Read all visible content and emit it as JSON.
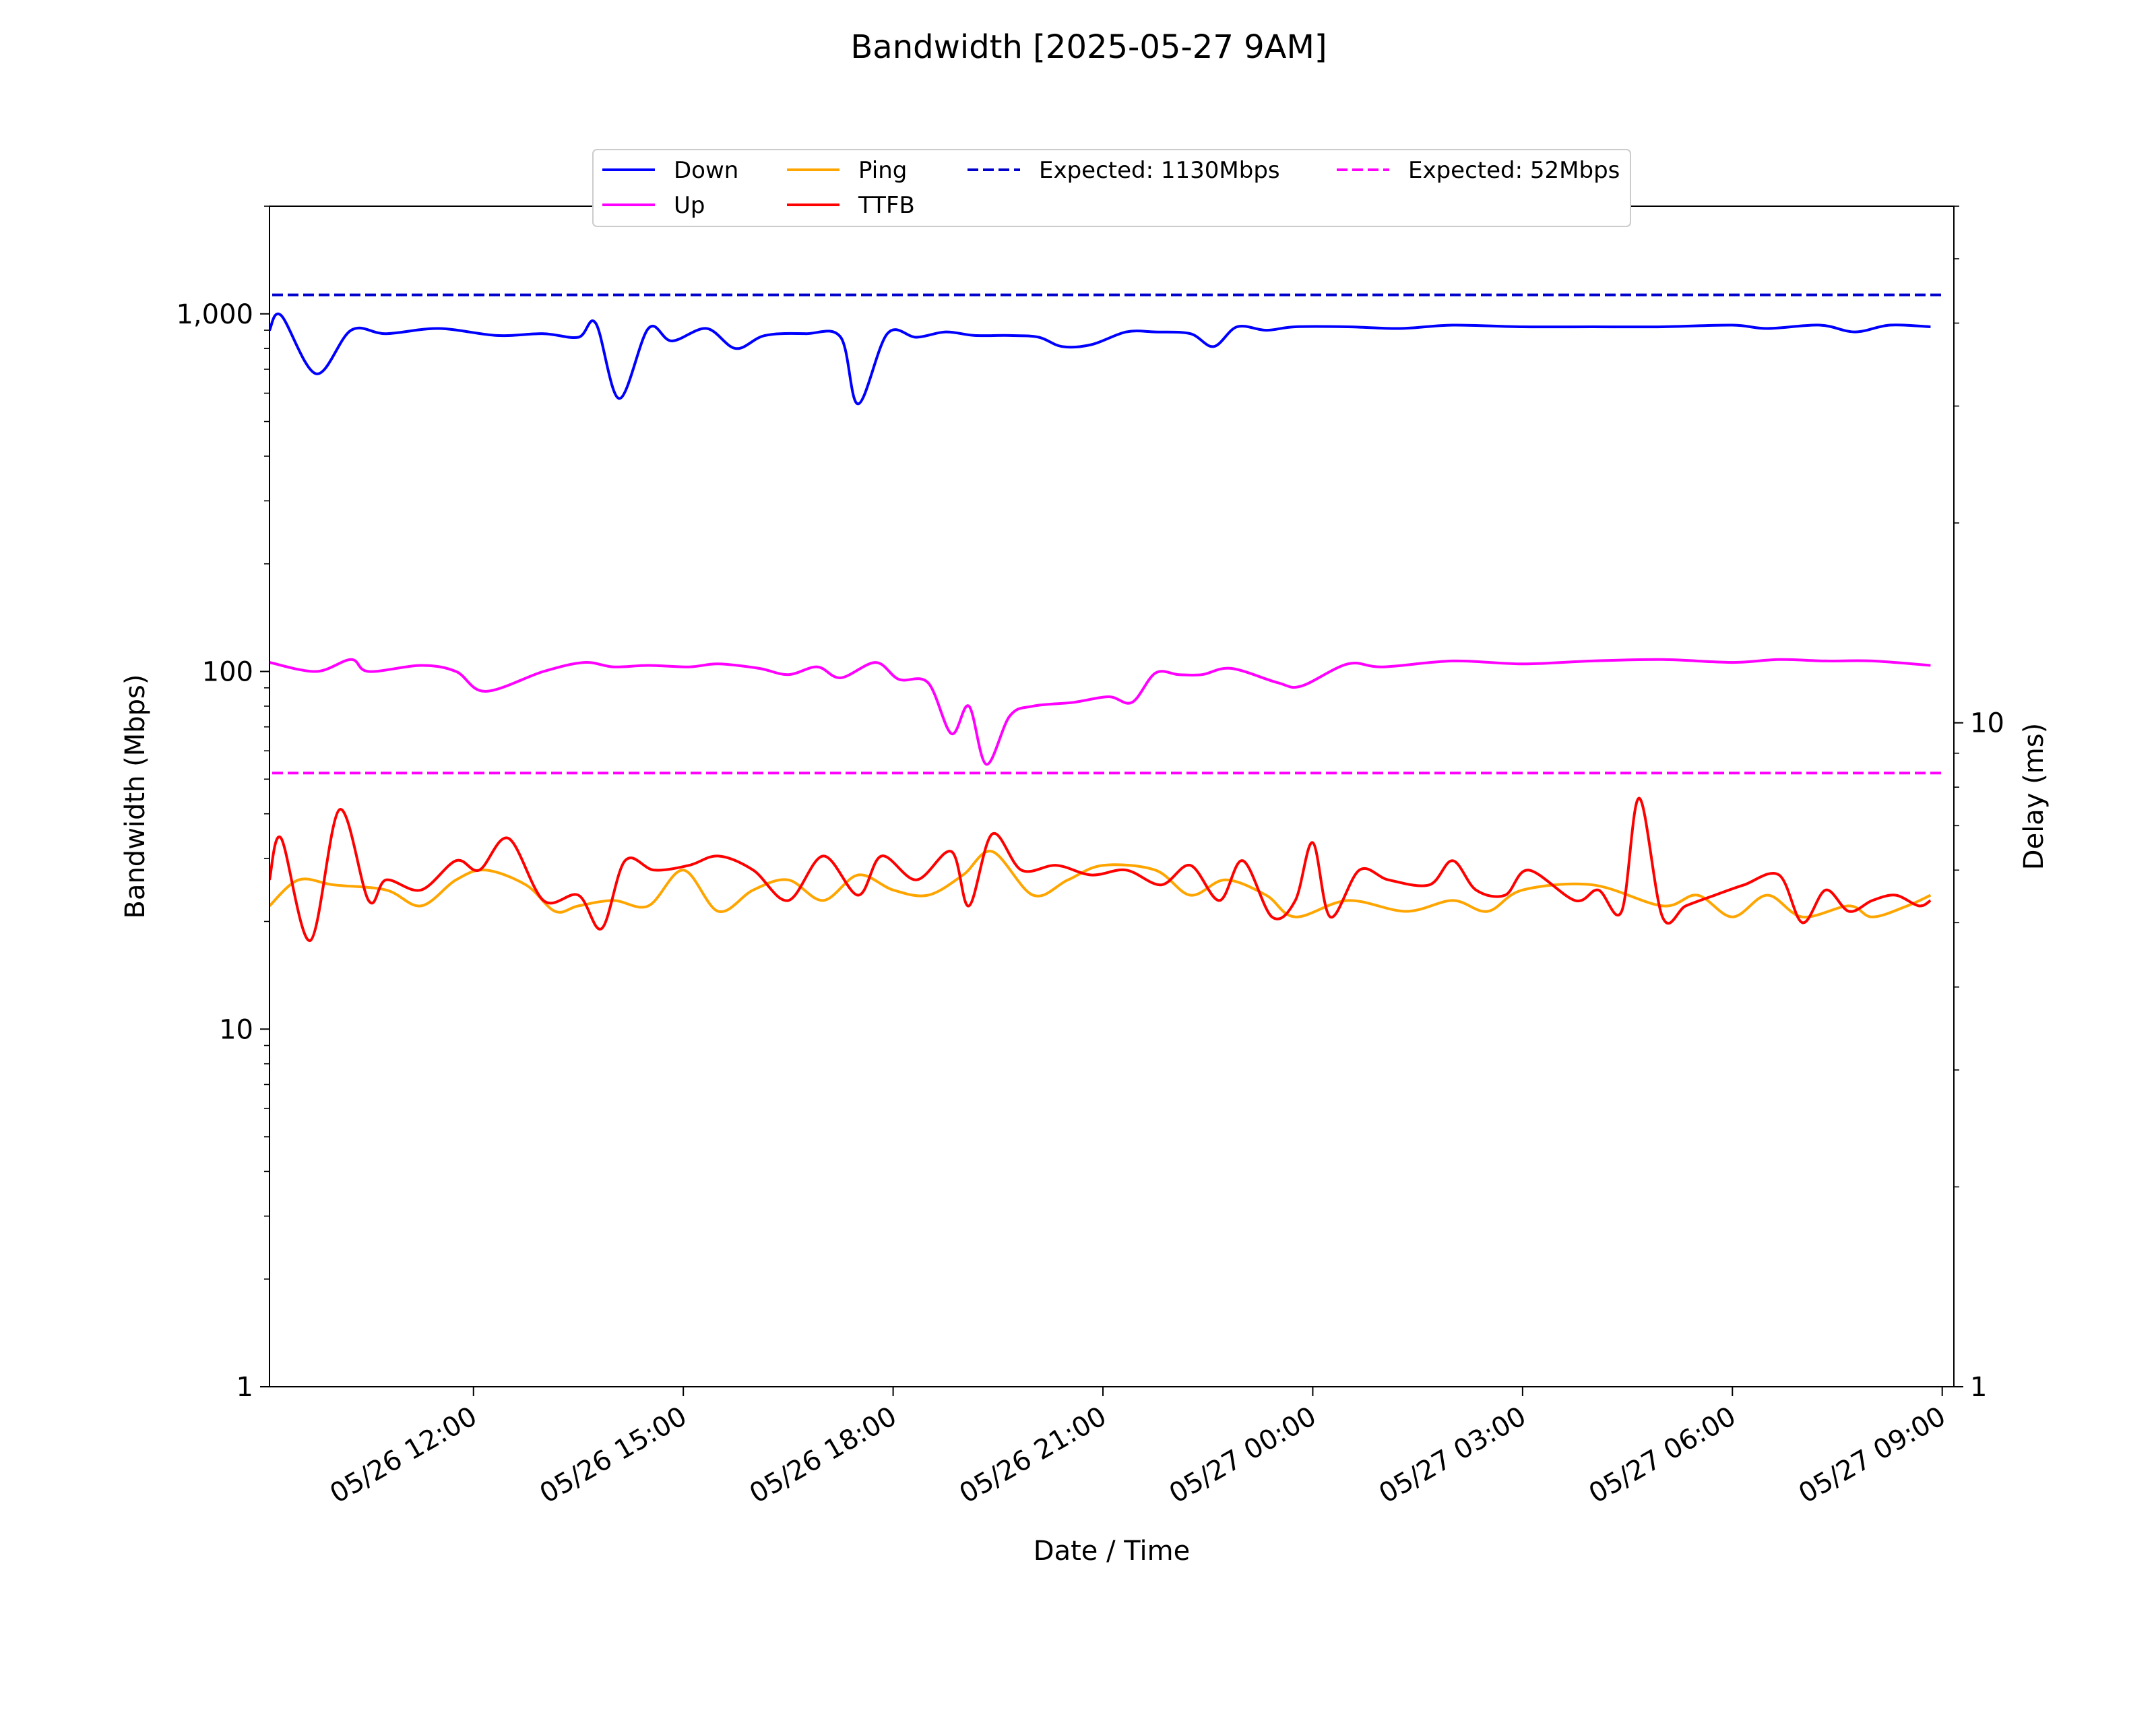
{
  "chart_data": {
    "type": "line",
    "title": "Bandwidth [2025-05-27 9AM]",
    "xlabel": "Date / Time",
    "ylabel_left": "Bandwidth (Mbps)",
    "ylabel_right": "Delay (ms)",
    "y_scale_left": "log",
    "y_scale_right": "log",
    "ylim_left": [
      1,
      2000
    ],
    "ylim_right": [
      1,
      60
    ],
    "xlim": [
      "2025-05-26 09:05",
      "2025-05-27 09:10"
    ],
    "grid": false,
    "legend_placement": "top-center",
    "x_tick_labels": [
      "05/26 12:00",
      "05/26 15:00",
      "05/26 18:00",
      "05/26 21:00",
      "05/27 00:00",
      "05/27 03:00",
      "05/27 06:00",
      "05/27 09:00"
    ],
    "y_tick_labels_left": [
      "1",
      "10",
      "100",
      "1,000"
    ],
    "y_tick_labels_right": [
      "1",
      "10"
    ],
    "expected_lines": [
      {
        "name": "Expected: 1130Mbps",
        "value": 1130,
        "axis": "left",
        "color": "#0000cc",
        "style": "dashed"
      },
      {
        "name": "Expected: 52Mbps",
        "value": 52,
        "axis": "left",
        "color": "#ff00ff",
        "style": "dashed"
      }
    ],
    "series": [
      {
        "name": "Down",
        "axis": "left",
        "color": "#0000ff",
        "x": [
          "2025-05-26 09:05",
          "2025-05-26 09:15",
          "2025-05-26 09:45",
          "2025-05-26 10:15",
          "2025-05-26 10:45",
          "2025-05-26 11:30",
          "2025-05-26 12:20",
          "2025-05-26 13:00",
          "2025-05-26 13:30",
          "2025-05-26 13:45",
          "2025-05-26 14:05",
          "2025-05-26 14:30",
          "2025-05-26 14:50",
          "2025-05-26 15:20",
          "2025-05-26 15:45",
          "2025-05-26 16:10",
          "2025-05-26 16:45",
          "2025-05-26 17:15",
          "2025-05-26 17:30",
          "2025-05-26 17:55",
          "2025-05-26 18:20",
          "2025-05-26 18:45",
          "2025-05-26 19:10",
          "2025-05-26 19:40",
          "2025-05-26 20:05",
          "2025-05-26 20:25",
          "2025-05-26 20:50",
          "2025-05-26 21:20",
          "2025-05-26 21:45",
          "2025-05-26 22:15",
          "2025-05-26 22:35",
          "2025-05-26 22:55",
          "2025-05-26 23:20",
          "2025-05-26 23:45",
          "2025-05-27 00:30",
          "2025-05-27 01:15",
          "2025-05-27 02:00",
          "2025-05-27 03:00",
          "2025-05-27 04:00",
          "2025-05-27 05:00",
          "2025-05-27 06:00",
          "2025-05-27 06:30",
          "2025-05-27 07:15",
          "2025-05-27 07:45",
          "2025-05-27 08:15",
          "2025-05-27 08:50"
        ],
        "values": [
          900,
          990,
          680,
          900,
          880,
          910,
          870,
          880,
          860,
          940,
          580,
          910,
          840,
          910,
          800,
          870,
          880,
          860,
          560,
          880,
          860,
          890,
          870,
          870,
          860,
          810,
          820,
          890,
          890,
          880,
          810,
          920,
          900,
          920,
          920,
          910,
          930,
          920,
          920,
          920,
          930,
          910,
          930,
          890,
          930,
          920
        ]
      },
      {
        "name": "Up",
        "axis": "left",
        "color": "#ff00ff",
        "x": [
          "2025-05-26 09:05",
          "2025-05-26 09:45",
          "2025-05-26 10:15",
          "2025-05-26 10:30",
          "2025-05-26 11:15",
          "2025-05-26 11:45",
          "2025-05-26 12:10",
          "2025-05-26 13:00",
          "2025-05-26 13:35",
          "2025-05-26 14:00",
          "2025-05-26 14:30",
          "2025-05-26 15:05",
          "2025-05-26 15:30",
          "2025-05-26 16:05",
          "2025-05-26 16:30",
          "2025-05-26 16:55",
          "2025-05-26 17:15",
          "2025-05-26 17:45",
          "2025-05-26 18:05",
          "2025-05-26 18:30",
          "2025-05-26 18:50",
          "2025-05-26 19:05",
          "2025-05-26 19:20",
          "2025-05-26 19:40",
          "2025-05-26 20:00",
          "2025-05-26 20:35",
          "2025-05-26 21:05",
          "2025-05-26 21:25",
          "2025-05-26 21:45",
          "2025-05-26 22:05",
          "2025-05-26 22:25",
          "2025-05-26 22:50",
          "2025-05-26 23:30",
          "2025-05-26 23:50",
          "2025-05-27 00:30",
          "2025-05-27 01:00",
          "2025-05-27 02:00",
          "2025-05-27 03:00",
          "2025-05-27 04:00",
          "2025-05-27 05:00",
          "2025-05-27 06:00",
          "2025-05-27 06:40",
          "2025-05-27 07:20",
          "2025-05-27 08:00",
          "2025-05-27 08:50"
        ],
        "values": [
          106,
          100,
          108,
          100,
          104,
          100,
          88,
          100,
          106,
          103,
          104,
          103,
          105,
          102,
          98,
          103,
          96,
          106,
          95,
          93,
          67,
          80,
          55,
          75,
          80,
          82,
          85,
          82,
          99,
          98,
          98,
          102,
          93,
          91,
          105,
          103,
          107,
          105,
          107,
          108,
          106,
          108,
          107,
          107,
          104
        ]
      },
      {
        "name": "Ping",
        "axis": "right",
        "color": "#ffa500",
        "x": [
          "2025-05-26 09:05",
          "2025-05-26 09:30",
          "2025-05-26 10:00",
          "2025-05-26 10:45",
          "2025-05-26 11:15",
          "2025-05-26 11:45",
          "2025-05-26 12:10",
          "2025-05-26 12:45",
          "2025-05-26 13:10",
          "2025-05-26 13:30",
          "2025-05-26 14:00",
          "2025-05-26 14:30",
          "2025-05-26 15:00",
          "2025-05-26 15:30",
          "2025-05-26 16:00",
          "2025-05-26 16:30",
          "2025-05-26 17:00",
          "2025-05-26 17:30",
          "2025-05-26 18:00",
          "2025-05-26 18:30",
          "2025-05-26 19:00",
          "2025-05-26 19:25",
          "2025-05-26 20:00",
          "2025-05-26 20:30",
          "2025-05-26 21:00",
          "2025-05-26 21:45",
          "2025-05-26 22:15",
          "2025-05-26 22:45",
          "2025-05-26 23:20",
          "2025-05-26 23:45",
          "2025-05-27 00:30",
          "2025-05-27 01:20",
          "2025-05-27 02:00",
          "2025-05-27 02:30",
          "2025-05-27 03:00",
          "2025-05-27 04:00",
          "2025-05-27 05:00",
          "2025-05-27 05:30",
          "2025-05-27 06:00",
          "2025-05-27 06:30",
          "2025-05-27 07:00",
          "2025-05-27 07:40",
          "2025-05-27 08:00",
          "2025-05-27 08:30",
          "2025-05-27 08:50"
        ],
        "values": [
          5.3,
          5.8,
          5.7,
          5.6,
          5.3,
          5.8,
          6.0,
          5.7,
          5.2,
          5.3,
          5.4,
          5.3,
          6.0,
          5.2,
          5.6,
          5.8,
          5.4,
          5.9,
          5.6,
          5.5,
          5.9,
          6.4,
          5.5,
          5.8,
          6.1,
          6.0,
          5.5,
          5.8,
          5.5,
          5.1,
          5.4,
          5.2,
          5.4,
          5.2,
          5.6,
          5.7,
          5.3,
          5.5,
          5.1,
          5.5,
          5.1,
          5.3,
          5.1,
          5.3,
          5.5
        ]
      },
      {
        "name": "TTFB",
        "axis": "right",
        "color": "#ff0000",
        "x": [
          "2025-05-26 09:05",
          "2025-05-26 09:15",
          "2025-05-26 09:40",
          "2025-05-26 10:05",
          "2025-05-26 10:30",
          "2025-05-26 10:45",
          "2025-05-26 11:15",
          "2025-05-26 11:45",
          "2025-05-26 12:05",
          "2025-05-26 12:30",
          "2025-05-26 13:00",
          "2025-05-26 13:30",
          "2025-05-26 13:50",
          "2025-05-26 14:10",
          "2025-05-26 14:35",
          "2025-05-26 15:05",
          "2025-05-26 15:30",
          "2025-05-26 16:00",
          "2025-05-26 16:30",
          "2025-05-26 17:00",
          "2025-05-26 17:30",
          "2025-05-26 17:50",
          "2025-05-26 18:20",
          "2025-05-26 18:50",
          "2025-05-26 19:05",
          "2025-05-26 19:25",
          "2025-05-26 19:50",
          "2025-05-26 20:20",
          "2025-05-26 20:50",
          "2025-05-26 21:20",
          "2025-05-26 21:50",
          "2025-05-26 22:15",
          "2025-05-26 22:40",
          "2025-05-26 23:00",
          "2025-05-26 23:25",
          "2025-05-26 23:45",
          "2025-05-27 00:00",
          "2025-05-27 00:15",
          "2025-05-27 00:40",
          "2025-05-27 01:05",
          "2025-05-27 01:40",
          "2025-05-27 02:00",
          "2025-05-27 02:20",
          "2025-05-27 02:45",
          "2025-05-27 03:05",
          "2025-05-27 03:45",
          "2025-05-27 04:05",
          "2025-05-27 04:25",
          "2025-05-27 04:40",
          "2025-05-27 05:00",
          "2025-05-27 05:20",
          "2025-05-27 05:45",
          "2025-05-27 06:10",
          "2025-05-27 06:40",
          "2025-05-27 07:00",
          "2025-05-27 07:20",
          "2025-05-27 07:40",
          "2025-05-27 08:00",
          "2025-05-27 08:20",
          "2025-05-27 08:40",
          "2025-05-27 08:50"
        ],
        "values": [
          5.8,
          6.7,
          4.7,
          7.4,
          5.4,
          5.8,
          5.6,
          6.2,
          6.0,
          6.7,
          5.4,
          5.5,
          4.9,
          6.2,
          6.0,
          6.1,
          6.3,
          6.0,
          5.4,
          6.3,
          5.5,
          6.3,
          5.8,
          6.4,
          5.3,
          6.8,
          6.0,
          6.1,
          5.9,
          6.0,
          5.7,
          6.1,
          5.4,
          6.2,
          5.1,
          5.4,
          6.6,
          5.1,
          6.0,
          5.8,
          5.7,
          6.2,
          5.6,
          5.5,
          6.0,
          5.4,
          5.6,
          5.2,
          7.7,
          5.1,
          5.3,
          5.5,
          5.7,
          5.9,
          5.0,
          5.6,
          5.2,
          5.4,
          5.5,
          5.3,
          5.4
        ]
      }
    ]
  }
}
